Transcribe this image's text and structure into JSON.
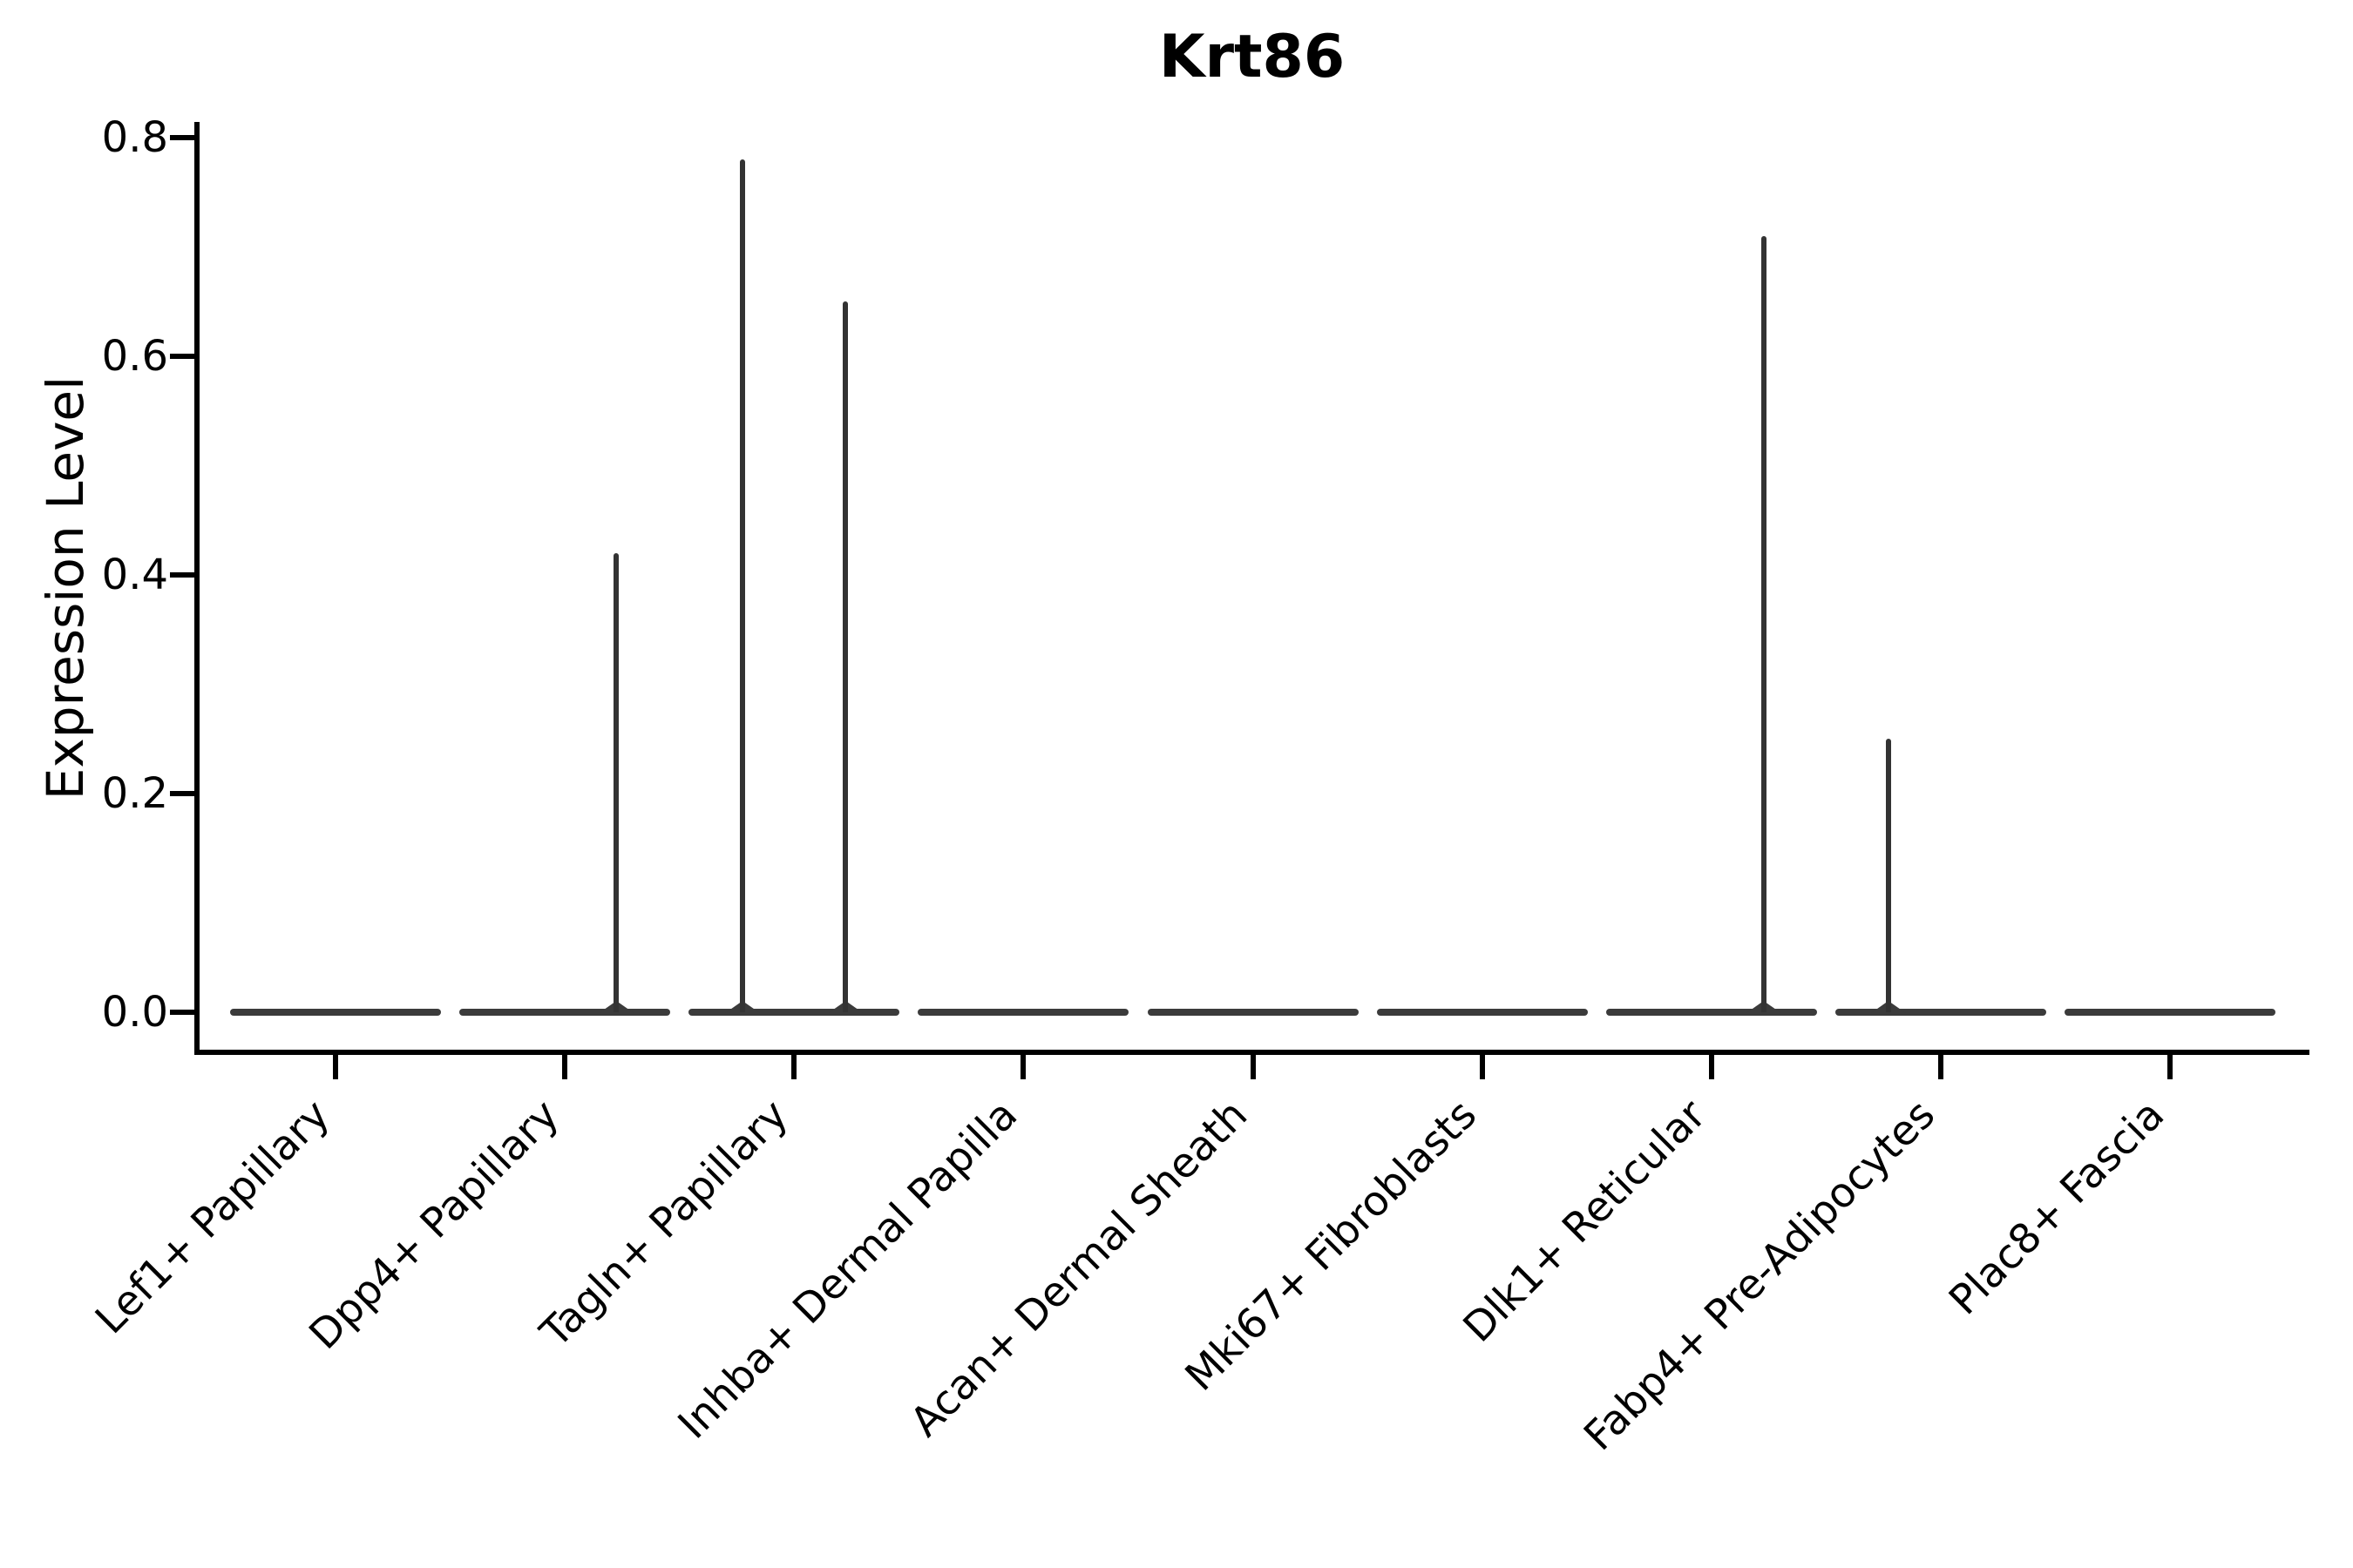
{
  "chart_data": {
    "type": "violin",
    "title": "Krt86",
    "xlabel": "",
    "ylabel": "Expression Level",
    "ylim": [
      0,
      0.8
    ],
    "yticks": [
      {
        "value": 0.0,
        "label": "0.0"
      },
      {
        "value": 0.2,
        "label": "0.2"
      },
      {
        "value": 0.4,
        "label": "0.4"
      },
      {
        "value": 0.6,
        "label": "0.6"
      },
      {
        "value": 0.8,
        "label": "0.8"
      }
    ],
    "grid": false,
    "legend": "none",
    "categories": [
      "Lef1+ Papillary",
      "Dpp4+ Papillary",
      "Tagln+ Papillary",
      "Inhba+ Dermal Papilla",
      "Acan+ Dermal Sheath",
      "Mki67+ Fibroblasts",
      "Dlk1+ Reticular",
      "Fabp4+ Pre-Adipocytes",
      "Plac8+ Fascia"
    ],
    "violins": [
      {
        "category": "Lef1+ Papillary",
        "bulk_at": 0.0,
        "max_expression": 0.0,
        "spikes": []
      },
      {
        "category": "Dpp4+ Papillary",
        "bulk_at": 0.0,
        "max_expression": 0.42,
        "spikes": [
          {
            "value": 0.42,
            "x_offset_frac": 0.225
          }
        ]
      },
      {
        "category": "Tagln+ Papillary",
        "bulk_at": 0.0,
        "max_expression": 0.78,
        "spikes": [
          {
            "value": 0.78,
            "x_offset_frac": -0.225
          },
          {
            "value": 0.65,
            "x_offset_frac": 0.225
          }
        ]
      },
      {
        "category": "Inhba+ Dermal Papilla",
        "bulk_at": 0.0,
        "max_expression": 0.0,
        "spikes": []
      },
      {
        "category": "Acan+ Dermal Sheath",
        "bulk_at": 0.0,
        "max_expression": 0.0,
        "spikes": []
      },
      {
        "category": "Mki67+ Fibroblasts",
        "bulk_at": 0.0,
        "max_expression": 0.0,
        "spikes": []
      },
      {
        "category": "Dlk1+ Reticular",
        "bulk_at": 0.0,
        "max_expression": 0.71,
        "spikes": [
          {
            "value": 0.71,
            "x_offset_frac": 0.228
          }
        ]
      },
      {
        "category": "Fabp4+ Pre-Adipocytes",
        "bulk_at": 0.0,
        "max_expression": 0.25,
        "spikes": [
          {
            "value": 0.25,
            "x_offset_frac": -0.228
          }
        ]
      },
      {
        "category": "Plac8+ Fascia",
        "bulk_at": 0.0,
        "max_expression": 0.0,
        "spikes": []
      }
    ],
    "colors": {
      "violin": "#3b3b3b",
      "spike": "#333333",
      "axis": "#000000",
      "text": "#000000",
      "background": "#ffffff"
    }
  }
}
